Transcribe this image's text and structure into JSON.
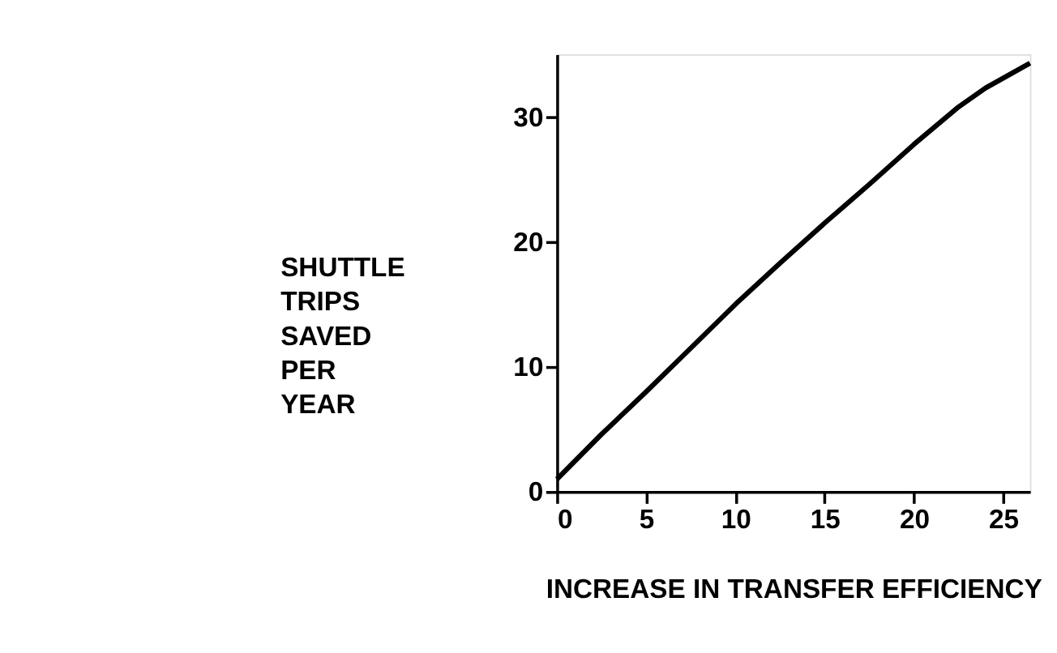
{
  "chart_data": {
    "type": "line",
    "xlabel": "INCREASE IN TRANSFER EFFICIENCY",
    "ylabel": "SHUTTLE TRIPS SAVED PER YEAR",
    "x": [
      0,
      2.5,
      5,
      7.5,
      10,
      12.5,
      15,
      17.5,
      20,
      22.5,
      24,
      25.5,
      26.5
    ],
    "series": [
      {
        "color": "#000000",
        "values": [
          1,
          4.6,
          8,
          11.5,
          15,
          18.3,
          21.5,
          24.6,
          27.8,
          30.8,
          32.3,
          33.5,
          34.3
        ]
      }
    ],
    "xlim": [
      0,
      26.5
    ],
    "ylim": [
      0,
      35
    ],
    "xticks": [
      0,
      5,
      10,
      15,
      20,
      25
    ],
    "yticks": [
      0,
      10,
      20,
      30
    ],
    "grid": false,
    "legend": false,
    "marker": "none",
    "line_style": "solid"
  }
}
